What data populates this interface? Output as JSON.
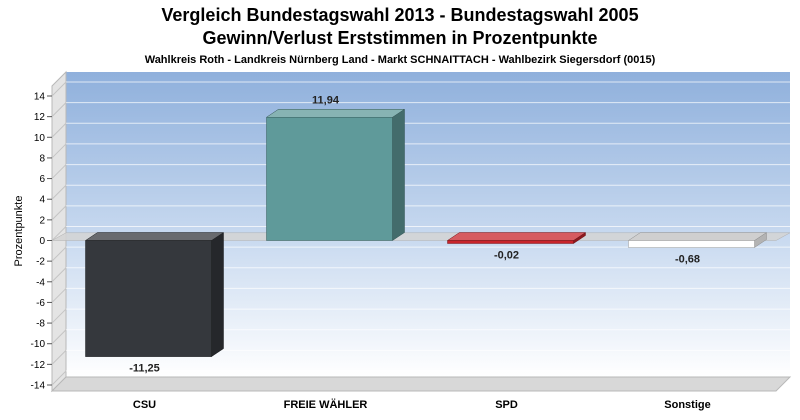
{
  "chart_data": {
    "type": "bar",
    "title": "Vergleich Bundestagswahl 2013  - Bundestagswahl 2005",
    "title_line2": "Gewinn/Verlust Erststimmen in Prozentpunkte",
    "subtitle": "Wahlkreis Roth - Landkreis Nürnberg Land - Markt SCHNAITTACH - Wahlbezirk Siegersdorf (0015)",
    "xlabel": "",
    "ylabel": "Prozentpunkte",
    "ylim": [
      -14,
      14
    ],
    "yticks": [
      14,
      12,
      10,
      8,
      6,
      4,
      2,
      0,
      -2,
      -4,
      -6,
      -8,
      -10,
      -12,
      -14
    ],
    "categories": [
      "CSU",
      "FREIE WÄHLER",
      "SPD",
      "Sonstige"
    ],
    "values": [
      -11.25,
      11.94,
      -0.02,
      -0.68
    ],
    "value_labels": [
      "-11,25",
      "11,94",
      "-0,02",
      "-0,68"
    ],
    "colors": [
      "#35383d",
      "#5f9a9a",
      "#c8242b",
      "#ffffff"
    ],
    "grid": true,
    "legend": "none"
  }
}
